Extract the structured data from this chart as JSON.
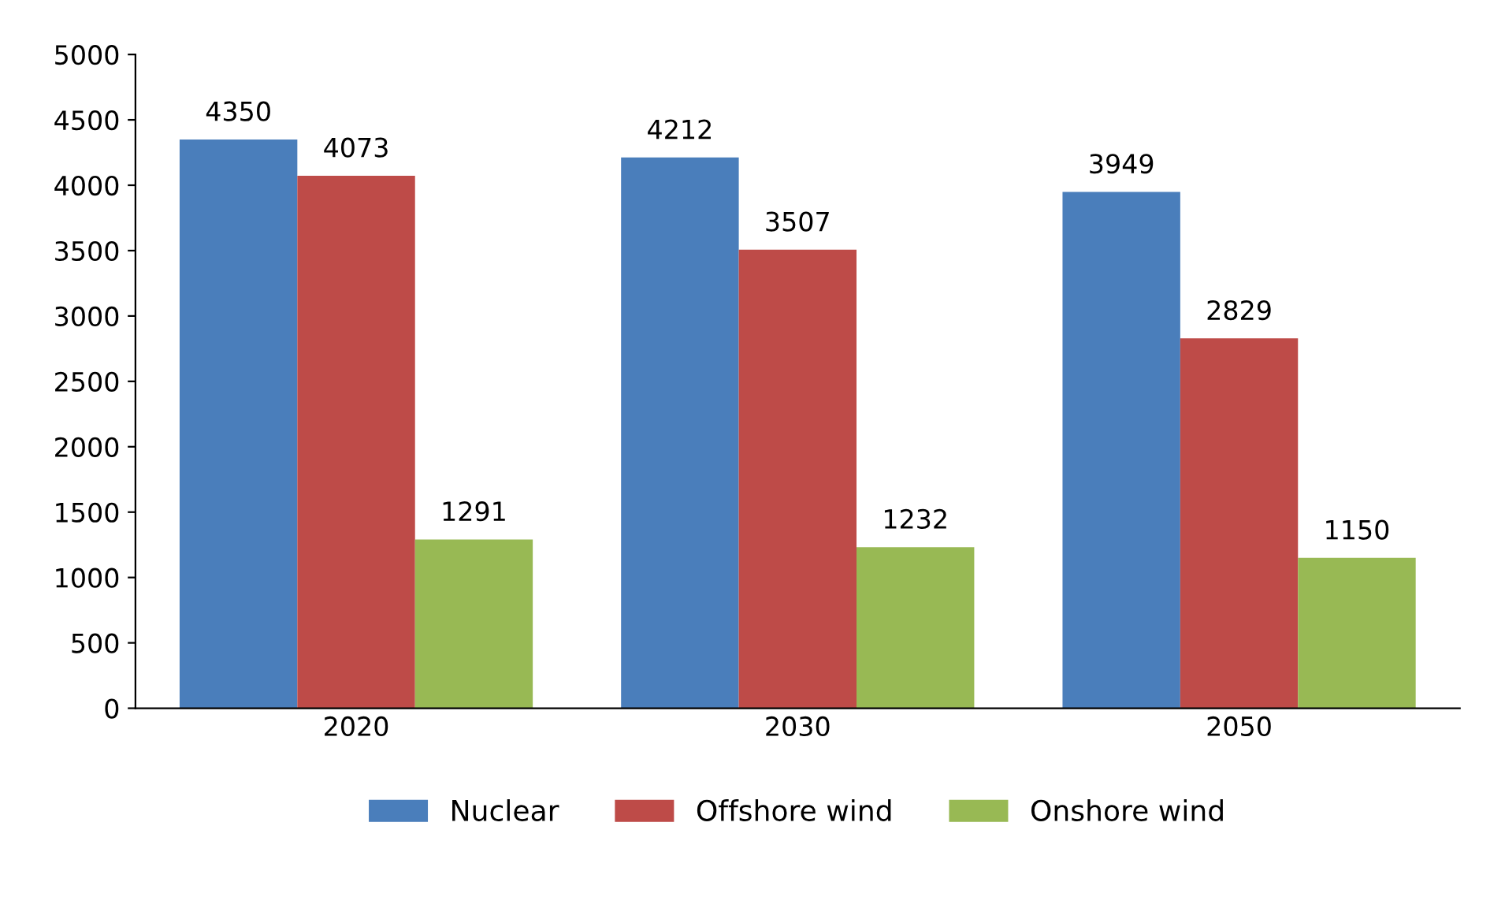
{
  "chart_data": {
    "type": "bar",
    "categories": [
      "2020",
      "2030",
      "2050"
    ],
    "series": [
      {
        "name": "Nuclear",
        "color": "#4a7ebb",
        "values": [
          4350,
          4212,
          3949
        ]
      },
      {
        "name": "Offshore wind",
        "color": "#be4b48",
        "values": [
          4073,
          3507,
          2829
        ]
      },
      {
        "name": "Onshore wind",
        "color": "#98b954",
        "values": [
          1291,
          1232,
          1150
        ]
      }
    ],
    "ylim": [
      0,
      5000
    ],
    "yticks": [
      0,
      500,
      1000,
      1500,
      2000,
      2500,
      3000,
      3500,
      4000,
      4500,
      5000
    ],
    "grid": false,
    "legend": "bottom",
    "data_labels": true
  }
}
